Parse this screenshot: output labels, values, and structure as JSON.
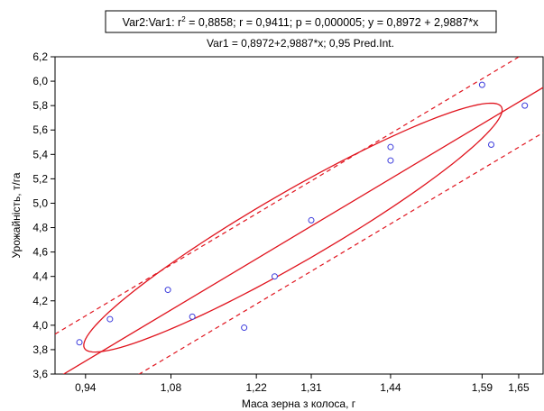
{
  "chart_data": {
    "type": "scatter",
    "title_box": {
      "prefix": "Var2:Var1:  r",
      "sup": "2",
      "rest": " = 0,8858;  r = 0,9411;  p = 0,000005;  y = 0,8972 + 2,9887*x"
    },
    "subtitle": "Var1 = 0,8972+2,9887*x; 0,95 Pred.Int.",
    "xlabel": "Маса зерна з колоса, г",
    "ylabel": "Урожайність, т/га",
    "xlim": [
      0.89,
      1.69
    ],
    "ylim": [
      3.6,
      6.2
    ],
    "x_ticks": [
      0.94,
      1.08,
      1.22,
      1.31,
      1.44,
      1.59,
      1.65
    ],
    "x_tick_labels": [
      "0,94",
      "1,08",
      "1,22",
      "1,31",
      "1,44",
      "1,59",
      "1,65"
    ],
    "y_ticks": [
      3.6,
      3.8,
      4.0,
      4.2,
      4.4,
      4.6,
      4.8,
      5.0,
      5.2,
      5.4,
      5.6,
      5.8,
      6.0,
      6.2
    ],
    "y_tick_labels": [
      "3,6",
      "3,8",
      "4,0",
      "4,2",
      "4,4",
      "4,6",
      "4,8",
      "5,0",
      "5,2",
      "5,4",
      "5,6",
      "5,8",
      "6,0",
      "6,2"
    ],
    "grid": false,
    "points": [
      {
        "x": 0.93,
        "y": 3.86
      },
      {
        "x": 0.98,
        "y": 4.05
      },
      {
        "x": 1.075,
        "y": 4.29
      },
      {
        "x": 1.115,
        "y": 4.07
      },
      {
        "x": 1.2,
        "y": 3.98
      },
      {
        "x": 1.25,
        "y": 4.4
      },
      {
        "x": 1.31,
        "y": 4.86
      },
      {
        "x": 1.44,
        "y": 5.35
      },
      {
        "x": 1.44,
        "y": 5.46
      },
      {
        "x": 1.59,
        "y": 5.97
      },
      {
        "x": 1.605,
        "y": 5.48
      },
      {
        "x": 1.66,
        "y": 5.8
      }
    ],
    "regression": {
      "intercept": 0.8972,
      "slope": 2.9887
    },
    "prediction_interval": {
      "level": 0.95,
      "offset": 0.37
    },
    "ellipse": {
      "center": [
        1.28,
        4.8
      ],
      "semi_major": [
        0.34,
        1.0
      ],
      "semi_minor": [
        0.045,
        -0.2
      ]
    },
    "colors": {
      "fit": "#e0141e",
      "points": "#3c3cdc",
      "axis": "#000000",
      "background": "#ffffff"
    }
  }
}
